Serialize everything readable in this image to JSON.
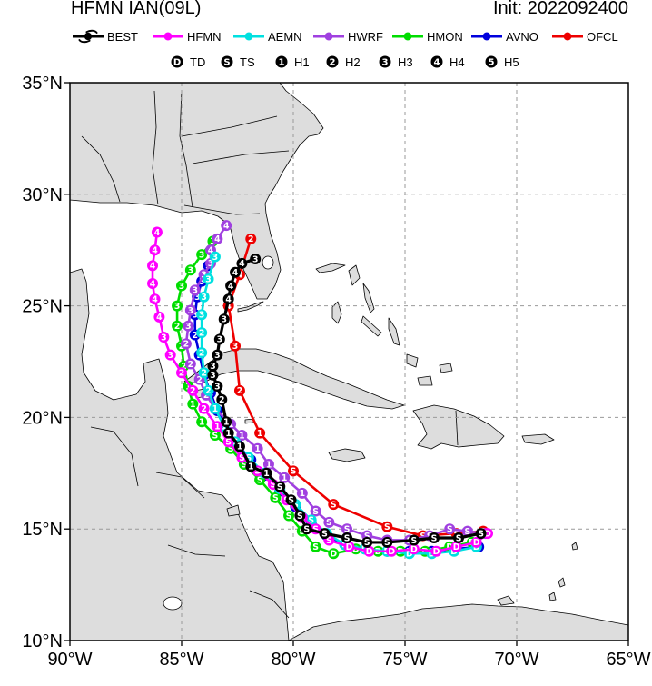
{
  "title": "HFMN IAN(09L)",
  "init": "Init: 2022092400",
  "legend": {
    "models": [
      {
        "name": "BEST",
        "color": "#000000"
      },
      {
        "name": "HFMN",
        "color": "#ff00ff"
      },
      {
        "name": "AEMN",
        "color": "#00e0e0"
      },
      {
        "name": "HWRF",
        "color": "#a040e0"
      },
      {
        "name": "HMON",
        "color": "#00dd00"
      },
      {
        "name": "AVNO",
        "color": "#0000dd"
      },
      {
        "name": "OFCL",
        "color": "#ee0000"
      }
    ],
    "intensity": [
      {
        "sym": "D",
        "label": "TD"
      },
      {
        "sym": "S",
        "label": "TS"
      },
      {
        "sym": "1",
        "label": "H1"
      },
      {
        "sym": "2",
        "label": "H2"
      },
      {
        "sym": "3",
        "label": "H3"
      },
      {
        "sym": "4",
        "label": "H4"
      },
      {
        "sym": "5",
        "label": "H5"
      }
    ]
  },
  "map": {
    "lon_range": [
      -90,
      -65
    ],
    "lat_range": [
      10,
      35
    ],
    "lon_ticks": [
      {
        "v": -90,
        "label": "90°W"
      },
      {
        "v": -85,
        "label": "85°W"
      },
      {
        "v": -80,
        "label": "80°W"
      },
      {
        "v": -75,
        "label": "75°W"
      },
      {
        "v": -70,
        "label": "70°W"
      },
      {
        "v": -65,
        "label": "65°W"
      }
    ],
    "lat_ticks": [
      {
        "v": 35,
        "label": "35°N"
      },
      {
        "v": 30,
        "label": "30°N"
      },
      {
        "v": 25,
        "label": "25°N"
      },
      {
        "v": 20,
        "label": "20°N"
      },
      {
        "v": 15,
        "label": "15°N"
      },
      {
        "v": 10,
        "label": "10°N"
      }
    ],
    "grid": true,
    "land_color": "#dddddd",
    "ocean_color": "#ffffff"
  },
  "tracks": [
    {
      "model": "BEST",
      "color": "#000000",
      "points": [
        [
          -71.6,
          14.8,
          "S"
        ],
        [
          -72.6,
          14.6,
          "S"
        ],
        [
          -73.7,
          14.6,
          "S"
        ],
        [
          -74.6,
          14.5,
          "S"
        ],
        [
          -75.8,
          14.4,
          "S"
        ],
        [
          -76.7,
          14.4,
          "S"
        ],
        [
          -77.6,
          14.6,
          "S"
        ],
        [
          -78.6,
          14.8,
          "S"
        ],
        [
          -79.4,
          15.0,
          "S"
        ],
        [
          -79.7,
          15.6,
          "S"
        ],
        [
          -80.1,
          16.3,
          "S"
        ],
        [
          -80.6,
          16.9,
          "S"
        ],
        [
          -81.2,
          17.5,
          "1"
        ],
        [
          -81.9,
          17.8,
          "1"
        ],
        [
          -82.4,
          18.7,
          "1"
        ],
        [
          -82.9,
          19.3,
          "1"
        ],
        [
          -83.0,
          19.8,
          "1"
        ],
        [
          -83.2,
          20.8,
          "2"
        ],
        [
          -83.4,
          21.4,
          "3"
        ],
        [
          -83.6,
          21.9,
          "3"
        ],
        [
          -83.6,
          22.3,
          "3"
        ],
        [
          -83.4,
          22.8,
          "3"
        ],
        [
          -83.3,
          23.5,
          "3"
        ],
        [
          -83.1,
          24.4,
          "3"
        ],
        [
          -82.9,
          25.3,
          "4"
        ],
        [
          -82.8,
          25.9,
          "4"
        ],
        [
          -82.6,
          26.5,
          "4"
        ],
        [
          -82.3,
          26.9,
          "4"
        ],
        [
          -81.7,
          27.1,
          "3"
        ]
      ]
    },
    {
      "model": "HFMN",
      "color": "#ff00ff",
      "points": [
        [
          -71.3,
          14.8,
          "D"
        ],
        [
          -71.8,
          14.4,
          "D"
        ],
        [
          -72.7,
          14.2,
          "D"
        ],
        [
          -73.6,
          14.0,
          "D"
        ],
        [
          -74.6,
          14.1,
          "D"
        ],
        [
          -75.6,
          14.0,
          "D"
        ],
        [
          -76.6,
          14.0,
          "D"
        ],
        [
          -77.5,
          14.2,
          "D"
        ],
        [
          -78.4,
          14.5,
          "S"
        ],
        [
          -79.0,
          15.0,
          "S"
        ],
        [
          -79.6,
          15.5,
          "S"
        ],
        [
          -80.3,
          16.3,
          "S"
        ],
        [
          -80.9,
          17.0,
          "S"
        ],
        [
          -81.6,
          17.6,
          "S"
        ],
        [
          -82.3,
          18.2,
          "S"
        ],
        [
          -82.9,
          18.9,
          "S"
        ],
        [
          -83.4,
          19.6,
          "1"
        ],
        [
          -84.0,
          20.4,
          "2"
        ],
        [
          -84.5,
          21.2,
          "2"
        ],
        [
          -85.0,
          22.0,
          "2"
        ],
        [
          -85.5,
          22.8,
          "3"
        ],
        [
          -85.8,
          23.6,
          "3"
        ],
        [
          -86.0,
          24.5,
          "4"
        ],
        [
          -86.2,
          25.3,
          "4"
        ],
        [
          -86.3,
          26.0,
          "4"
        ],
        [
          -86.3,
          26.8,
          "4"
        ],
        [
          -86.2,
          27.5,
          "4"
        ],
        [
          -86.1,
          28.3,
          "4"
        ]
      ]
    },
    {
      "model": "AEMN",
      "color": "#00e0e0",
      "points": [
        [
          -71.8,
          14.2,
          "D"
        ],
        [
          -72.8,
          14.0,
          "D"
        ],
        [
          -73.8,
          13.9,
          "D"
        ],
        [
          -74.8,
          13.9,
          "D"
        ],
        [
          -75.8,
          14.0,
          "D"
        ],
        [
          -76.8,
          14.1,
          "D"
        ],
        [
          -77.7,
          14.3,
          "S"
        ],
        [
          -78.5,
          14.8,
          "S"
        ],
        [
          -79.2,
          15.4,
          "S"
        ],
        [
          -79.9,
          16.1,
          "S"
        ],
        [
          -80.6,
          16.8,
          "S"
        ],
        [
          -81.3,
          17.5,
          "S"
        ],
        [
          -82.0,
          18.2,
          "S"
        ],
        [
          -82.6,
          18.9,
          "S"
        ],
        [
          -83.1,
          19.6,
          "1"
        ],
        [
          -83.5,
          20.4,
          "1"
        ],
        [
          -83.8,
          21.2,
          "2"
        ],
        [
          -84.0,
          22.0,
          "2"
        ],
        [
          -84.1,
          22.9,
          "2"
        ],
        [
          -84.1,
          23.8,
          "2"
        ],
        [
          -84.1,
          24.6,
          "3"
        ],
        [
          -84.0,
          25.4,
          "3"
        ],
        [
          -83.8,
          26.2,
          "3"
        ],
        [
          -83.5,
          27.2,
          "3"
        ]
      ]
    },
    {
      "model": "HWRF",
      "color": "#a040e0",
      "points": [
        [
          -71.4,
          14.8,
          "D"
        ],
        [
          -72.2,
          14.9,
          "S"
        ],
        [
          -73.0,
          15.0,
          "S"
        ],
        [
          -73.9,
          14.7,
          "S"
        ],
        [
          -74.8,
          14.5,
          "S"
        ],
        [
          -75.8,
          14.5,
          "S"
        ],
        [
          -76.7,
          14.7,
          "S"
        ],
        [
          -77.6,
          15.0,
          "S"
        ],
        [
          -78.4,
          15.3,
          "S"
        ],
        [
          -79.0,
          15.8,
          "S"
        ],
        [
          -79.6,
          16.6,
          "1"
        ],
        [
          -80.4,
          17.3,
          "1"
        ],
        [
          -81.1,
          17.9,
          "1"
        ],
        [
          -81.6,
          18.6,
          "1"
        ],
        [
          -82.3,
          19.2,
          "1"
        ],
        [
          -82.8,
          19.7,
          "1"
        ],
        [
          -83.5,
          20.4,
          "1"
        ],
        [
          -83.9,
          21.0,
          "2"
        ],
        [
          -84.2,
          21.7,
          "2"
        ],
        [
          -84.6,
          22.4,
          "2"
        ],
        [
          -84.8,
          23.3,
          "2"
        ],
        [
          -84.7,
          24.1,
          "3"
        ],
        [
          -84.6,
          24.8,
          "3"
        ],
        [
          -84.4,
          25.7,
          "3"
        ],
        [
          -84.0,
          26.4,
          "3"
        ],
        [
          -83.7,
          26.9,
          "3"
        ],
        [
          -83.7,
          27.5,
          "4"
        ],
        [
          -83.4,
          28.0,
          "4"
        ],
        [
          -83.0,
          28.6,
          "4"
        ]
      ]
    },
    {
      "model": "HMON",
      "color": "#00dd00",
      "points": [
        [
          -72.0,
          14.4,
          "D"
        ],
        [
          -73.0,
          14.2,
          "D"
        ],
        [
          -74.1,
          14.0,
          "D"
        ],
        [
          -75.2,
          14.0,
          "D"
        ],
        [
          -76.2,
          14.0,
          "D"
        ],
        [
          -77.2,
          14.1,
          "D"
        ],
        [
          -78.2,
          13.9,
          "D"
        ],
        [
          -79.0,
          14.2,
          "S"
        ],
        [
          -79.6,
          14.9,
          "S"
        ],
        [
          -80.2,
          15.6,
          "S"
        ],
        [
          -80.8,
          16.4,
          "S"
        ],
        [
          -81.5,
          17.2,
          "S"
        ],
        [
          -82.2,
          17.9,
          "S"
        ],
        [
          -82.8,
          18.6,
          "S"
        ],
        [
          -83.5,
          19.2,
          "S"
        ],
        [
          -84.1,
          19.8,
          "1"
        ],
        [
          -84.5,
          20.6,
          "1"
        ],
        [
          -84.7,
          21.4,
          "1"
        ],
        [
          -84.9,
          22.3,
          "2"
        ],
        [
          -85.0,
          23.2,
          "2"
        ],
        [
          -85.2,
          24.1,
          "2"
        ],
        [
          -85.2,
          25.0,
          "3"
        ],
        [
          -85.0,
          25.9,
          "3"
        ],
        [
          -84.6,
          26.6,
          "3"
        ],
        [
          -84.1,
          27.3,
          "3"
        ],
        [
          -83.6,
          27.9,
          "3"
        ]
      ]
    },
    {
      "model": "AVNO",
      "color": "#0000dd",
      "points": [
        [
          -71.7,
          14.2,
          "D"
        ],
        [
          -72.8,
          14.1,
          "D"
        ],
        [
          -73.8,
          14.0,
          "D"
        ],
        [
          -74.8,
          14.0,
          "D"
        ],
        [
          -75.8,
          14.0,
          "D"
        ],
        [
          -76.8,
          14.1,
          "D"
        ],
        [
          -77.7,
          14.3,
          "S"
        ],
        [
          -78.5,
          14.7,
          "S"
        ],
        [
          -79.2,
          15.3,
          "S"
        ],
        [
          -79.9,
          16.0,
          "S"
        ],
        [
          -80.6,
          16.7,
          "S"
        ],
        [
          -81.3,
          17.4,
          "S"
        ],
        [
          -81.9,
          18.1,
          "S"
        ],
        [
          -82.5,
          18.8,
          "S"
        ],
        [
          -83.0,
          19.5,
          "1"
        ],
        [
          -83.4,
          20.3,
          "1"
        ],
        [
          -83.7,
          21.1,
          "2"
        ],
        [
          -84.0,
          21.9,
          "2"
        ],
        [
          -84.2,
          22.8,
          "2"
        ],
        [
          -84.4,
          23.7,
          "2"
        ],
        [
          -84.4,
          24.6,
          "3"
        ],
        [
          -84.3,
          25.4,
          "3"
        ],
        [
          -84.1,
          26.1,
          "3"
        ],
        [
          -83.8,
          26.8,
          "3"
        ]
      ]
    },
    {
      "model": "OFCL",
      "color": "#ee0000",
      "points": [
        [
          -71.5,
          14.9,
          "D"
        ],
        [
          -72.7,
          14.8,
          "S"
        ],
        [
          -74.2,
          14.7,
          "S"
        ],
        [
          -75.8,
          15.1,
          "S"
        ],
        [
          -78.2,
          16.1,
          "S"
        ],
        [
          -80.0,
          17.6,
          "S"
        ],
        [
          -81.5,
          19.3,
          "1"
        ],
        [
          -82.4,
          21.2,
          "2"
        ],
        [
          -82.6,
          23.2,
          "3"
        ],
        [
          -82.9,
          25.0,
          "4"
        ],
        [
          -82.4,
          26.4,
          "4"
        ],
        [
          -81.9,
          28.0,
          "2"
        ]
      ]
    }
  ]
}
